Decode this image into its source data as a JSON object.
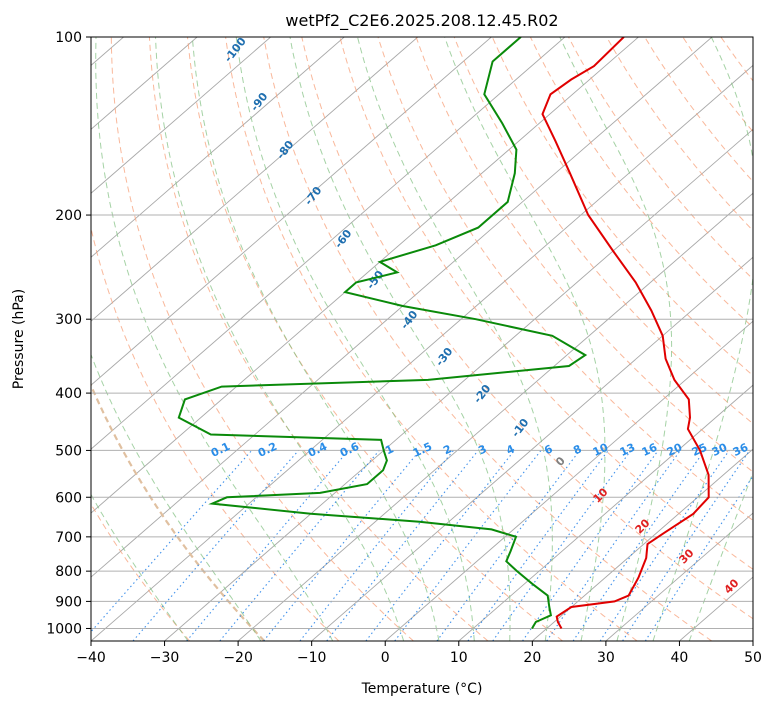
{
  "chart_data": {
    "type": "line",
    "title": "wetPf2_C2E6.2025.208.12.45.R02",
    "xlabel": "Temperature (°C)",
    "ylabel": "Pressure (hPa)",
    "xlim": [
      -40,
      50
    ],
    "ylim": [
      1050,
      100
    ],
    "y_scale": "log",
    "x_ticks": [
      -40,
      -30,
      -20,
      -10,
      0,
      10,
      20,
      30,
      40,
      50
    ],
    "x_tick_labels": [
      "−40",
      "−30",
      "−20",
      "−10",
      "0",
      "10",
      "20",
      "30",
      "40",
      "50"
    ],
    "y_ticks": [
      100,
      200,
      300,
      400,
      500,
      600,
      700,
      800,
      900,
      1000
    ],
    "y_tick_labels": [
      "100",
      "200",
      "300",
      "400",
      "500",
      "600",
      "700",
      "800",
      "900",
      "1000"
    ],
    "grid": true,
    "temperature": {
      "color": "#e00000",
      "points": [
        {
          "p": 1000,
          "t": 22.0
        },
        {
          "p": 975,
          "t": 20.5
        },
        {
          "p": 955,
          "t": 19.5
        },
        {
          "p": 920,
          "t": 20.0
        },
        {
          "p": 900,
          "t": 25.0
        },
        {
          "p": 880,
          "t": 26.0
        },
        {
          "p": 820,
          "t": 24.5
        },
        {
          "p": 760,
          "t": 22.5
        },
        {
          "p": 720,
          "t": 20.5
        },
        {
          "p": 690,
          "t": 21.0
        },
        {
          "p": 640,
          "t": 22.0
        },
        {
          "p": 600,
          "t": 21.5
        },
        {
          "p": 550,
          "t": 18.0
        },
        {
          "p": 500,
          "t": 13.0
        },
        {
          "p": 460,
          "t": 8.0
        },
        {
          "p": 440,
          "t": 6.5
        },
        {
          "p": 410,
          "t": 3.5
        },
        {
          "p": 380,
          "t": -1.5
        },
        {
          "p": 350,
          "t": -6.0
        },
        {
          "p": 320,
          "t": -10.0
        },
        {
          "p": 290,
          "t": -15.5
        },
        {
          "p": 260,
          "t": -22.0
        },
        {
          "p": 230,
          "t": -30.0
        },
        {
          "p": 200,
          "t": -39.0
        },
        {
          "p": 170,
          "t": -48.0
        },
        {
          "p": 150,
          "t": -55.0
        },
        {
          "p": 135,
          "t": -61.0
        },
        {
          "p": 125,
          "t": -63.0
        },
        {
          "p": 118,
          "t": -62.5
        },
        {
          "p": 112,
          "t": -61.5
        },
        {
          "p": 100,
          "t": -62.0
        }
      ]
    },
    "dewpoint": {
      "color": "#0a8a0a",
      "points": [
        {
          "p": 1000,
          "t": 18.0
        },
        {
          "p": 975,
          "t": 17.5
        },
        {
          "p": 950,
          "t": 18.5
        },
        {
          "p": 920,
          "t": 17.0
        },
        {
          "p": 880,
          "t": 15.0
        },
        {
          "p": 840,
          "t": 11.0
        },
        {
          "p": 800,
          "t": 7.0
        },
        {
          "p": 770,
          "t": 4.0
        },
        {
          "p": 740,
          "t": 3.0
        },
        {
          "p": 700,
          "t": 1.5
        },
        {
          "p": 680,
          "t": -3.0
        },
        {
          "p": 660,
          "t": -14.0
        },
        {
          "p": 640,
          "t": -30.0
        },
        {
          "p": 615,
          "t": -45.0
        },
        {
          "p": 600,
          "t": -44.0
        },
        {
          "p": 590,
          "t": -32.0
        },
        {
          "p": 570,
          "t": -27.0
        },
        {
          "p": 540,
          "t": -27.0
        },
        {
          "p": 520,
          "t": -28.0
        },
        {
          "p": 500,
          "t": -30.0
        },
        {
          "p": 480,
          "t": -32.0
        },
        {
          "p": 470,
          "t": -56.0
        },
        {
          "p": 440,
          "t": -63.0
        },
        {
          "p": 410,
          "t": -65.0
        },
        {
          "p": 390,
          "t": -62.0
        },
        {
          "p": 380,
          "t": -35.0
        },
        {
          "p": 360,
          "t": -18.0
        },
        {
          "p": 345,
          "t": -17.5
        },
        {
          "p": 320,
          "t": -25.0
        },
        {
          "p": 300,
          "t": -38.0
        },
        {
          "p": 285,
          "t": -50.0
        },
        {
          "p": 270,
          "t": -60.0
        },
        {
          "p": 260,
          "t": -60.0
        },
        {
          "p": 250,
          "t": -56.0
        },
        {
          "p": 240,
          "t": -60.0
        },
        {
          "p": 225,
          "t": -55.0
        },
        {
          "p": 210,
          "t": -52.0
        },
        {
          "p": 190,
          "t": -52.0
        },
        {
          "p": 170,
          "t": -55.5
        },
        {
          "p": 155,
          "t": -59.0
        },
        {
          "p": 140,
          "t": -65.0
        },
        {
          "p": 125,
          "t": -72.0
        },
        {
          "p": 110,
          "t": -76.0
        },
        {
          "p": 100,
          "t": -76.0
        }
      ]
    },
    "dry_adiabat_labels": [
      "0",
      "10",
      "20",
      "30",
      "40"
    ],
    "moist_adiabat_labels": [
      "-100",
      "-90",
      "-80",
      "-70",
      "-60",
      "-50",
      "-40",
      "-30",
      "-20",
      "-10"
    ],
    "mixing_ratio_labels": [
      "0.1",
      "0.2",
      "0.4",
      "0.6",
      "1",
      "1.5",
      "2",
      "3",
      "4",
      "6",
      "8",
      "10",
      "13",
      "16",
      "20",
      "25",
      "30",
      "36"
    ],
    "colors": {
      "dry_label": "#e02020",
      "dry_label_zero": "#808080",
      "moist_label": "#1f6fb0",
      "mixing_label": "#2a8de8"
    }
  }
}
